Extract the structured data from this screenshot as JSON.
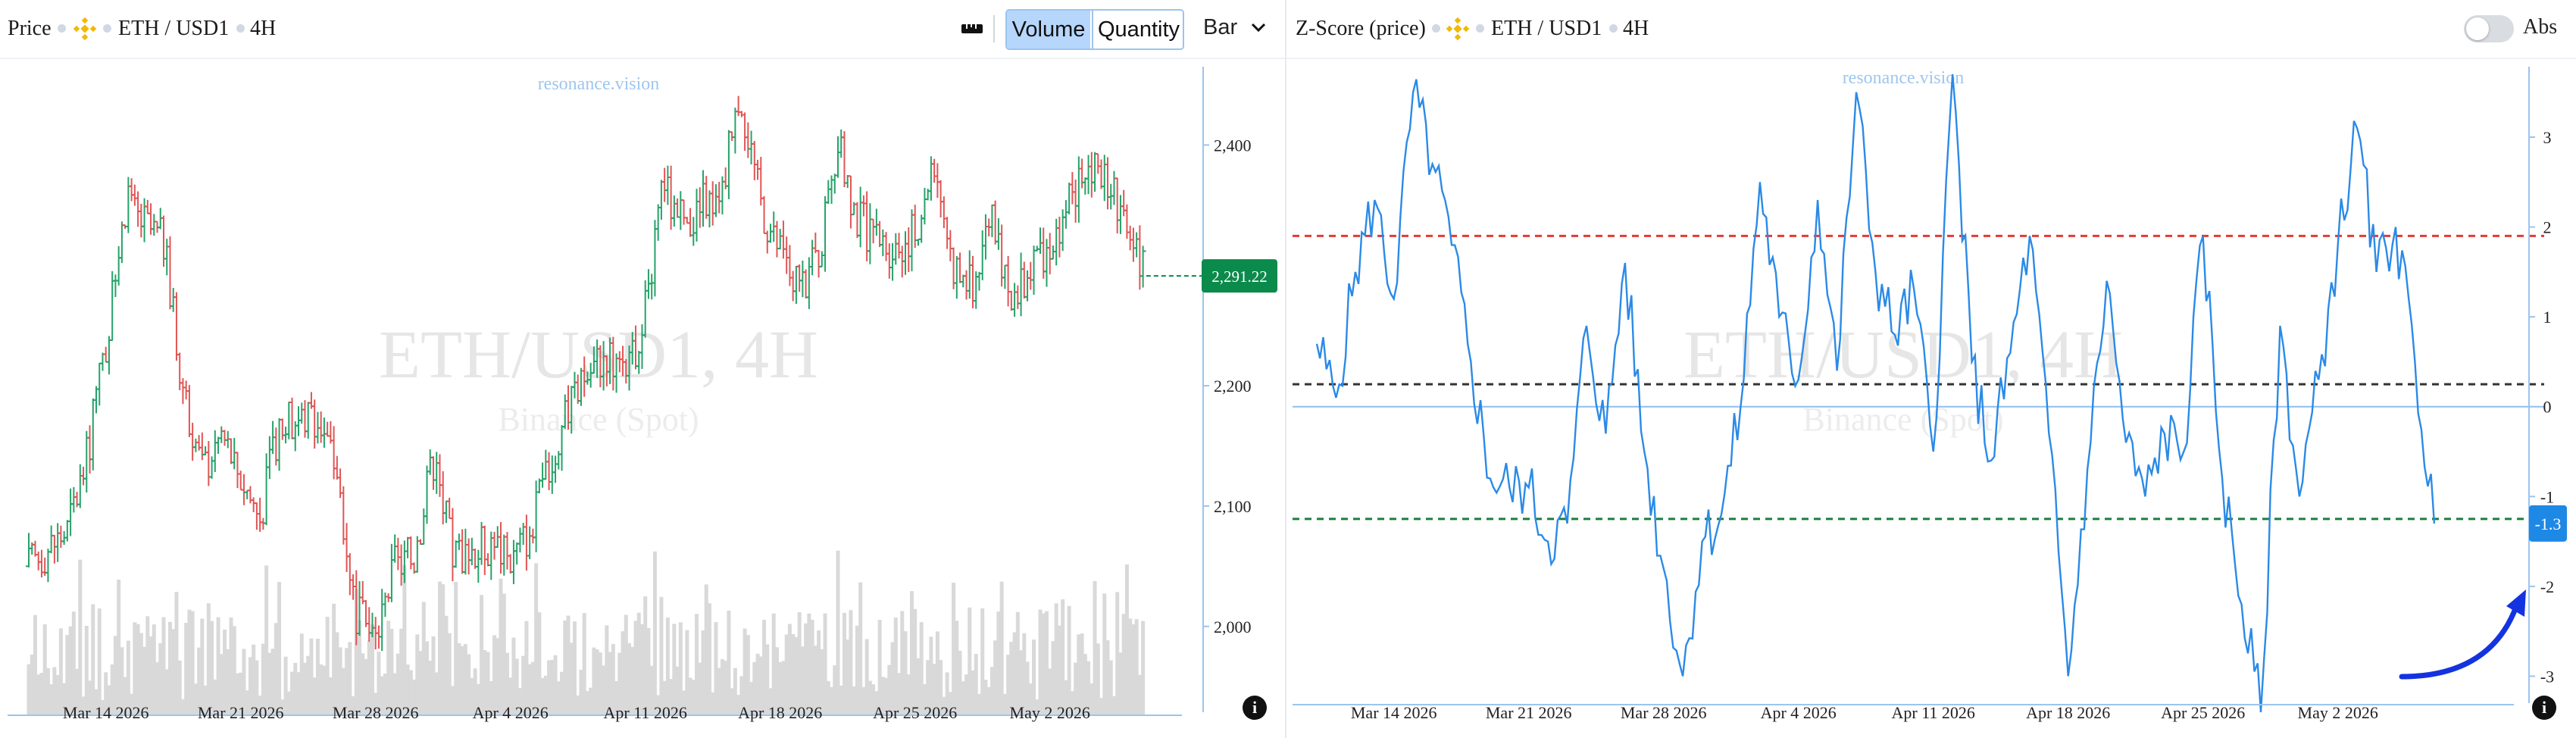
{
  "left_header": {
    "title": "Price",
    "pair": "ETH / USD1",
    "interval": "4H",
    "exchange_icon": "binance-icon",
    "ruler_icon": "ruler-icon",
    "volume_label": "Volume",
    "quantity_label": "Quantity",
    "chart_type_label": "Bar"
  },
  "right_header": {
    "title": "Z-Score (price)",
    "pair": "ETH / USD1",
    "interval": "4H",
    "exchange_icon": "binance-icon",
    "abs_label": "Abs"
  },
  "watermark": {
    "site": "resonance.vision",
    "pair": "ETH/USD1, 4H",
    "exchange": "Binance (Spot)"
  },
  "colors": {
    "up": "#26a269",
    "down": "#e05555",
    "volume": "#d9d9d9",
    "zscore_line": "#2b8ae6",
    "upper_band": "#e53935",
    "lower_band": "#1b7f3b",
    "mean_line": "#333333",
    "price_tag": "#0a8a4b",
    "zscore_tag": "#1e88e5",
    "arrow": "#1433e0"
  },
  "chart_data": [
    {
      "type": "ohlc",
      "name": "price",
      "x_ticks": [
        "Mar 14 2026",
        "Mar 21 2026",
        "Mar 28 2026",
        "Apr 4 2026",
        "Apr 11 2026",
        "Apr 18 2026",
        "Apr 25 2026",
        "May 2 2026"
      ],
      "y_ticks": [
        2000,
        2100,
        2200,
        2400
      ],
      "y_tick_labels": [
        "2,000",
        "2,100",
        "2,200",
        "2,400"
      ],
      "ylim": [
        1935,
        2455
      ],
      "last_price": 2291.22,
      "last_price_label": "2,291.22",
      "close_path_keypoints": [
        {
          "date": "Mar 10 2026",
          "close": 2050
        },
        {
          "date": "Mar 12 2026",
          "close": 2080
        },
        {
          "date": "Mar 13 2026",
          "close": 2140
        },
        {
          "date": "Mar 14 2026",
          "close": 2230
        },
        {
          "date": "Mar 15 2026",
          "close": 2350
        },
        {
          "date": "Mar 17 2026",
          "close": 2320
        },
        {
          "date": "Mar 18 2026",
          "close": 2200
        },
        {
          "date": "Mar 19 2026",
          "close": 2130
        },
        {
          "date": "Mar 20 2026",
          "close": 2160
        },
        {
          "date": "Mar 22 2026",
          "close": 2090
        },
        {
          "date": "Mar 23 2026",
          "close": 2170
        },
        {
          "date": "Mar 25 2026",
          "close": 2175
        },
        {
          "date": "Mar 26 2026",
          "close": 2130
        },
        {
          "date": "Mar 27 2026",
          "close": 2010
        },
        {
          "date": "Mar 28 2026",
          "close": 1990
        },
        {
          "date": "Mar 29 2026",
          "close": 2050
        },
        {
          "date": "Mar 30 2026",
          "close": 2060
        },
        {
          "date": "Mar 31 2026",
          "close": 2140
        },
        {
          "date": "Apr 1 2026",
          "close": 2060
        },
        {
          "date": "Apr 3 2026",
          "close": 2070
        },
        {
          "date": "Apr 4 2026",
          "close": 2055
        },
        {
          "date": "Apr 5 2026",
          "close": 2080
        },
        {
          "date": "Apr 6 2026",
          "close": 2130
        },
        {
          "date": "Apr 7 2026",
          "close": 2180
        },
        {
          "date": "Apr 8 2026",
          "close": 2210
        },
        {
          "date": "Apr 9 2026",
          "close": 2230
        },
        {
          "date": "Apr 10 2026",
          "close": 2200
        },
        {
          "date": "Apr 11 2026",
          "close": 2260
        },
        {
          "date": "Apr 12 2026",
          "close": 2370
        },
        {
          "date": "Apr 13 2026",
          "close": 2330
        },
        {
          "date": "Apr 14 2026",
          "close": 2350
        },
        {
          "date": "Apr 15 2026",
          "close": 2370
        },
        {
          "date": "Apr 16 2026",
          "close": 2440
        },
        {
          "date": "Apr 17 2026",
          "close": 2350
        },
        {
          "date": "Apr 18 2026",
          "close": 2310
        },
        {
          "date": "Apr 19 2026",
          "close": 2280
        },
        {
          "date": "Apr 20 2026",
          "close": 2310
        },
        {
          "date": "Apr 21 2026",
          "close": 2400
        },
        {
          "date": "Apr 22 2026",
          "close": 2340
        },
        {
          "date": "Apr 23 2026",
          "close": 2320
        },
        {
          "date": "Apr 24 2026",
          "close": 2315
        },
        {
          "date": "Apr 25 2026",
          "close": 2330
        },
        {
          "date": "Apr 26 2026",
          "close": 2390
        },
        {
          "date": "Apr 27 2026",
          "close": 2300
        },
        {
          "date": "Apr 28 2026",
          "close": 2280
        },
        {
          "date": "Apr 29 2026",
          "close": 2350
        },
        {
          "date": "Apr 30 2026",
          "close": 2260
        },
        {
          "date": "May 1 2026",
          "close": 2300
        },
        {
          "date": "May 2 2026",
          "close": 2320
        },
        {
          "date": "May 3 2026",
          "close": 2350
        },
        {
          "date": "May 4 2026",
          "close": 2390
        },
        {
          "date": "May 5 2026",
          "close": 2370
        },
        {
          "date": "May 6 2026",
          "close": 2340
        },
        {
          "date": "May 7 2026",
          "close": 2291
        }
      ],
      "volume_series": "gray volume bars along bottom of price pane"
    },
    {
      "type": "line",
      "name": "zscore",
      "x_ticks": [
        "Mar 14 2026",
        "Mar 21 2026",
        "Mar 28 2026",
        "Apr 4 2026",
        "Apr 11 2026",
        "Apr 18 2026",
        "Apr 25 2026",
        "May 2 2026"
      ],
      "y_ticks": [
        3,
        2,
        1,
        0,
        -1,
        -2,
        -3
      ],
      "ylim": [
        -3.3,
        3.7
      ],
      "bands": {
        "upper": 1.9,
        "mean": 0.25,
        "lower": -1.25
      },
      "last_value": -1.3,
      "last_value_label": "-1.3",
      "keypoints": [
        {
          "date": "Mar 10 2026",
          "z": 0.7
        },
        {
          "date": "Mar 11 2026",
          "z": 0.1
        },
        {
          "date": "Mar 12 2026",
          "z": 1.5
        },
        {
          "date": "Mar 13 2026",
          "z": 2.3
        },
        {
          "date": "Mar 14 2026",
          "z": 1.2
        },
        {
          "date": "Mar 15 2026",
          "z": 3.5
        },
        {
          "date": "Mar 16 2026",
          "z": 2.7
        },
        {
          "date": "Mar 17 2026",
          "z": 1.8
        },
        {
          "date": "Mar 18 2026",
          "z": 0.5
        },
        {
          "date": "Mar 19 2026",
          "z": -0.8
        },
        {
          "date": "Mar 20 2026",
          "z": -0.9
        },
        {
          "date": "Mar 21 2026",
          "z": -0.9
        },
        {
          "date": "Mar 22 2026",
          "z": -1.5
        },
        {
          "date": "Mar 23 2026",
          "z": -1.3
        },
        {
          "date": "Mar 24 2026",
          "z": 0.9
        },
        {
          "date": "Mar 25 2026",
          "z": -0.3
        },
        {
          "date": "Mar 26 2026",
          "z": 1.6
        },
        {
          "date": "Mar 27 2026",
          "z": -0.5
        },
        {
          "date": "Mar 28 2026",
          "z": -1.8
        },
        {
          "date": "Mar 29 2026",
          "z": -3.0
        },
        {
          "date": "Mar 30 2026",
          "z": -1.5
        },
        {
          "date": "Mar 31 2026",
          "z": -1.2
        },
        {
          "date": "Apr 1 2026",
          "z": 0.0
        },
        {
          "date": "Apr 2 2026",
          "z": 2.5
        },
        {
          "date": "Apr 3 2026",
          "z": 1.0
        },
        {
          "date": "Apr 4 2026",
          "z": 0.3
        },
        {
          "date": "Apr 5 2026",
          "z": 2.3
        },
        {
          "date": "Apr 6 2026",
          "z": 0.4
        },
        {
          "date": "Apr 7 2026",
          "z": 3.5
        },
        {
          "date": "Apr 8 2026",
          "z": 1.5
        },
        {
          "date": "Apr 9 2026",
          "z": 0.8
        },
        {
          "date": "Apr 10 2026",
          "z": 1.3
        },
        {
          "date": "Apr 11 2026",
          "z": -0.5
        },
        {
          "date": "Apr 12 2026",
          "z": 3.7
        },
        {
          "date": "Apr 13 2026",
          "z": 0.5
        },
        {
          "date": "Apr 14 2026",
          "z": -0.6
        },
        {
          "date": "Apr 15 2026",
          "z": 0.6
        },
        {
          "date": "Apr 16 2026",
          "z": 1.9
        },
        {
          "date": "Apr 17 2026",
          "z": -0.3
        },
        {
          "date": "Apr 18 2026",
          "z": -3.0
        },
        {
          "date": "Apr 19 2026",
          "z": -0.7
        },
        {
          "date": "Apr 20 2026",
          "z": 1.4
        },
        {
          "date": "Apr 21 2026",
          "z": -0.4
        },
        {
          "date": "Apr 22 2026",
          "z": -1.0
        },
        {
          "date": "Apr 23 2026",
          "z": -0.3
        },
        {
          "date": "Apr 24 2026",
          "z": -0.5
        },
        {
          "date": "Apr 25 2026",
          "z": 1.9
        },
        {
          "date": "Apr 26 2026",
          "z": -0.8
        },
        {
          "date": "Apr 27 2026",
          "z": -2.2
        },
        {
          "date": "Apr 28 2026",
          "z": -3.4
        },
        {
          "date": "Apr 29 2026",
          "z": 0.9
        },
        {
          "date": "Apr 30 2026",
          "z": -1.0
        },
        {
          "date": "May 1 2026",
          "z": 0.3
        },
        {
          "date": "May 2 2026",
          "z": 1.8
        },
        {
          "date": "May 3 2026",
          "z": 3.1
        },
        {
          "date": "May 4 2026",
          "z": 1.5
        },
        {
          "date": "May 5 2026",
          "z": 2.0
        },
        {
          "date": "May 6 2026",
          "z": 0.5
        },
        {
          "date": "May 7 2026",
          "z": -1.3
        }
      ]
    }
  ]
}
